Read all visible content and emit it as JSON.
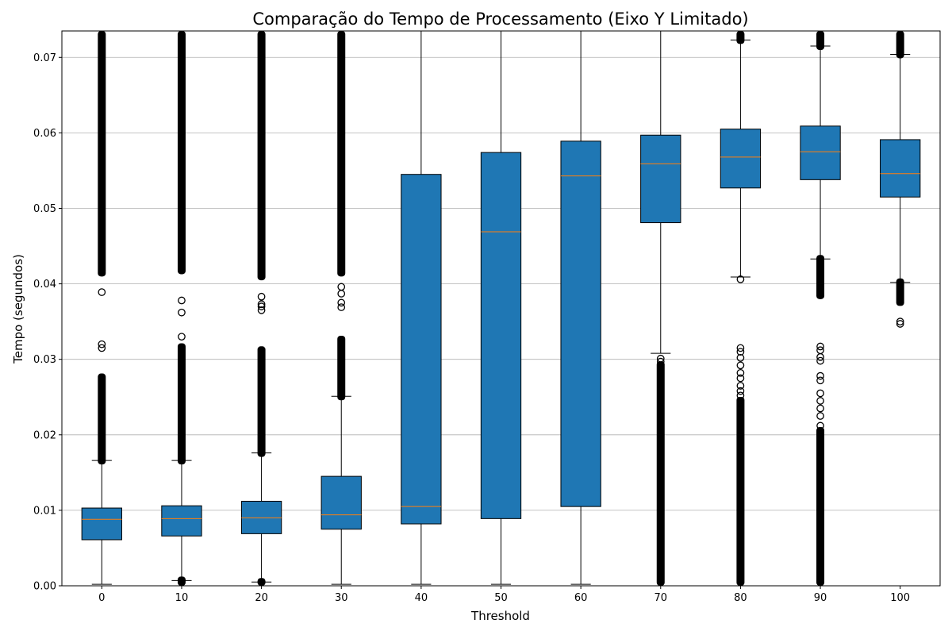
{
  "chart_data": {
    "type": "box",
    "title": "Comparação do Tempo de Processamento (Eixo Y Limitado)",
    "xlabel": "Threshold",
    "ylabel": "Tempo (segundos)",
    "ylim": [
      0,
      0.0735
    ],
    "yticks": [
      "0.00",
      "0.01",
      "0.02",
      "0.03",
      "0.04",
      "0.05",
      "0.06",
      "0.07"
    ],
    "ytick_values": [
      0,
      0.01,
      0.02,
      0.03,
      0.04,
      0.05,
      0.06,
      0.07
    ],
    "grid": "y",
    "box_color": "#1f77b4",
    "median_color": "#ff7f0e",
    "categories": [
      "0",
      "10",
      "20",
      "30",
      "40",
      "50",
      "60",
      "70",
      "80",
      "90",
      "100"
    ],
    "boxes": [
      {
        "whislo": 0.0002,
        "q1": 0.0061,
        "med": 0.0088,
        "q3": 0.0103,
        "whishi": 0.0166,
        "fliers_ranges": [
          [
            0.0166,
            0.0276
          ],
          [
            0.0415,
            0.0735
          ]
        ],
        "fliers": [
          0.0315,
          0.032,
          0.0389,
          0.0418
        ]
      },
      {
        "whislo": 0.0007,
        "q1": 0.0066,
        "med": 0.0089,
        "q3": 0.0106,
        "whishi": 0.0166,
        "fliers_ranges": [
          [
            0.0,
            0.0007
          ],
          [
            0.0166,
            0.0316
          ],
          [
            0.0418,
            0.0735
          ]
        ],
        "fliers": [
          0.033,
          0.0362,
          0.0378
        ]
      },
      {
        "whislo": 0.0005,
        "q1": 0.0069,
        "med": 0.009,
        "q3": 0.0112,
        "whishi": 0.0176,
        "fliers_ranges": [
          [
            0.0,
            0.0005
          ],
          [
            0.0176,
            0.0312
          ],
          [
            0.041,
            0.0735
          ]
        ],
        "fliers": [
          0.0365,
          0.037,
          0.0373,
          0.0383
        ]
      },
      {
        "whislo": 0.0002,
        "q1": 0.0075,
        "med": 0.0094,
        "q3": 0.0145,
        "whishi": 0.0251,
        "fliers_ranges": [
          [
            0.0251,
            0.0326
          ],
          [
            0.0415,
            0.0735
          ]
        ],
        "fliers": [
          0.0369,
          0.0375,
          0.0387,
          0.0396
        ]
      },
      {
        "whislo": 0.0002,
        "q1": 0.0082,
        "med": 0.0105,
        "q3": 0.0545,
        "whishi": 0.0735,
        "fliers_ranges": [],
        "fliers": []
      },
      {
        "whislo": 0.0002,
        "q1": 0.0089,
        "med": 0.0469,
        "q3": 0.0574,
        "whishi": 0.0735,
        "fliers_ranges": [],
        "fliers": []
      },
      {
        "whislo": 0.0002,
        "q1": 0.0105,
        "med": 0.0543,
        "q3": 0.0589,
        "whishi": 0.0735,
        "fliers_ranges": [],
        "fliers": []
      },
      {
        "whislo": 0.0308,
        "q1": 0.0481,
        "med": 0.0559,
        "q3": 0.0597,
        "whishi": 0.0735,
        "fliers_ranges": [
          [
            0.0,
            0.0292
          ]
        ],
        "fliers": [
          0.0297,
          0.0301
        ]
      },
      {
        "whislo": 0.0409,
        "q1": 0.0527,
        "med": 0.0568,
        "q3": 0.0605,
        "whishi": 0.0723,
        "fliers_ranges": [
          [
            0.0,
            0.0245
          ],
          [
            0.0723,
            0.0735
          ]
        ],
        "fliers": [
          0.0252,
          0.0258,
          0.0265,
          0.0275,
          0.0282,
          0.0292,
          0.0302,
          0.031,
          0.0315,
          0.0406
        ]
      },
      {
        "whislo": 0.0433,
        "q1": 0.0538,
        "med": 0.0575,
        "q3": 0.0609,
        "whishi": 0.0715,
        "fliers_ranges": [
          [
            0.0,
            0.0205
          ],
          [
            0.0385,
            0.0433
          ],
          [
            0.0715,
            0.0735
          ]
        ],
        "fliers": [
          0.0212,
          0.0225,
          0.0235,
          0.0245,
          0.0255,
          0.0272,
          0.0278,
          0.0298,
          0.0303,
          0.0312,
          0.0317
        ]
      },
      {
        "whislo": 0.0402,
        "q1": 0.0515,
        "med": 0.0546,
        "q3": 0.0591,
        "whishi": 0.0704,
        "fliers_ranges": [
          [
            0.0376,
            0.0402
          ],
          [
            0.0704,
            0.0735
          ]
        ],
        "fliers": [
          0.0347,
          0.035
        ]
      }
    ]
  }
}
